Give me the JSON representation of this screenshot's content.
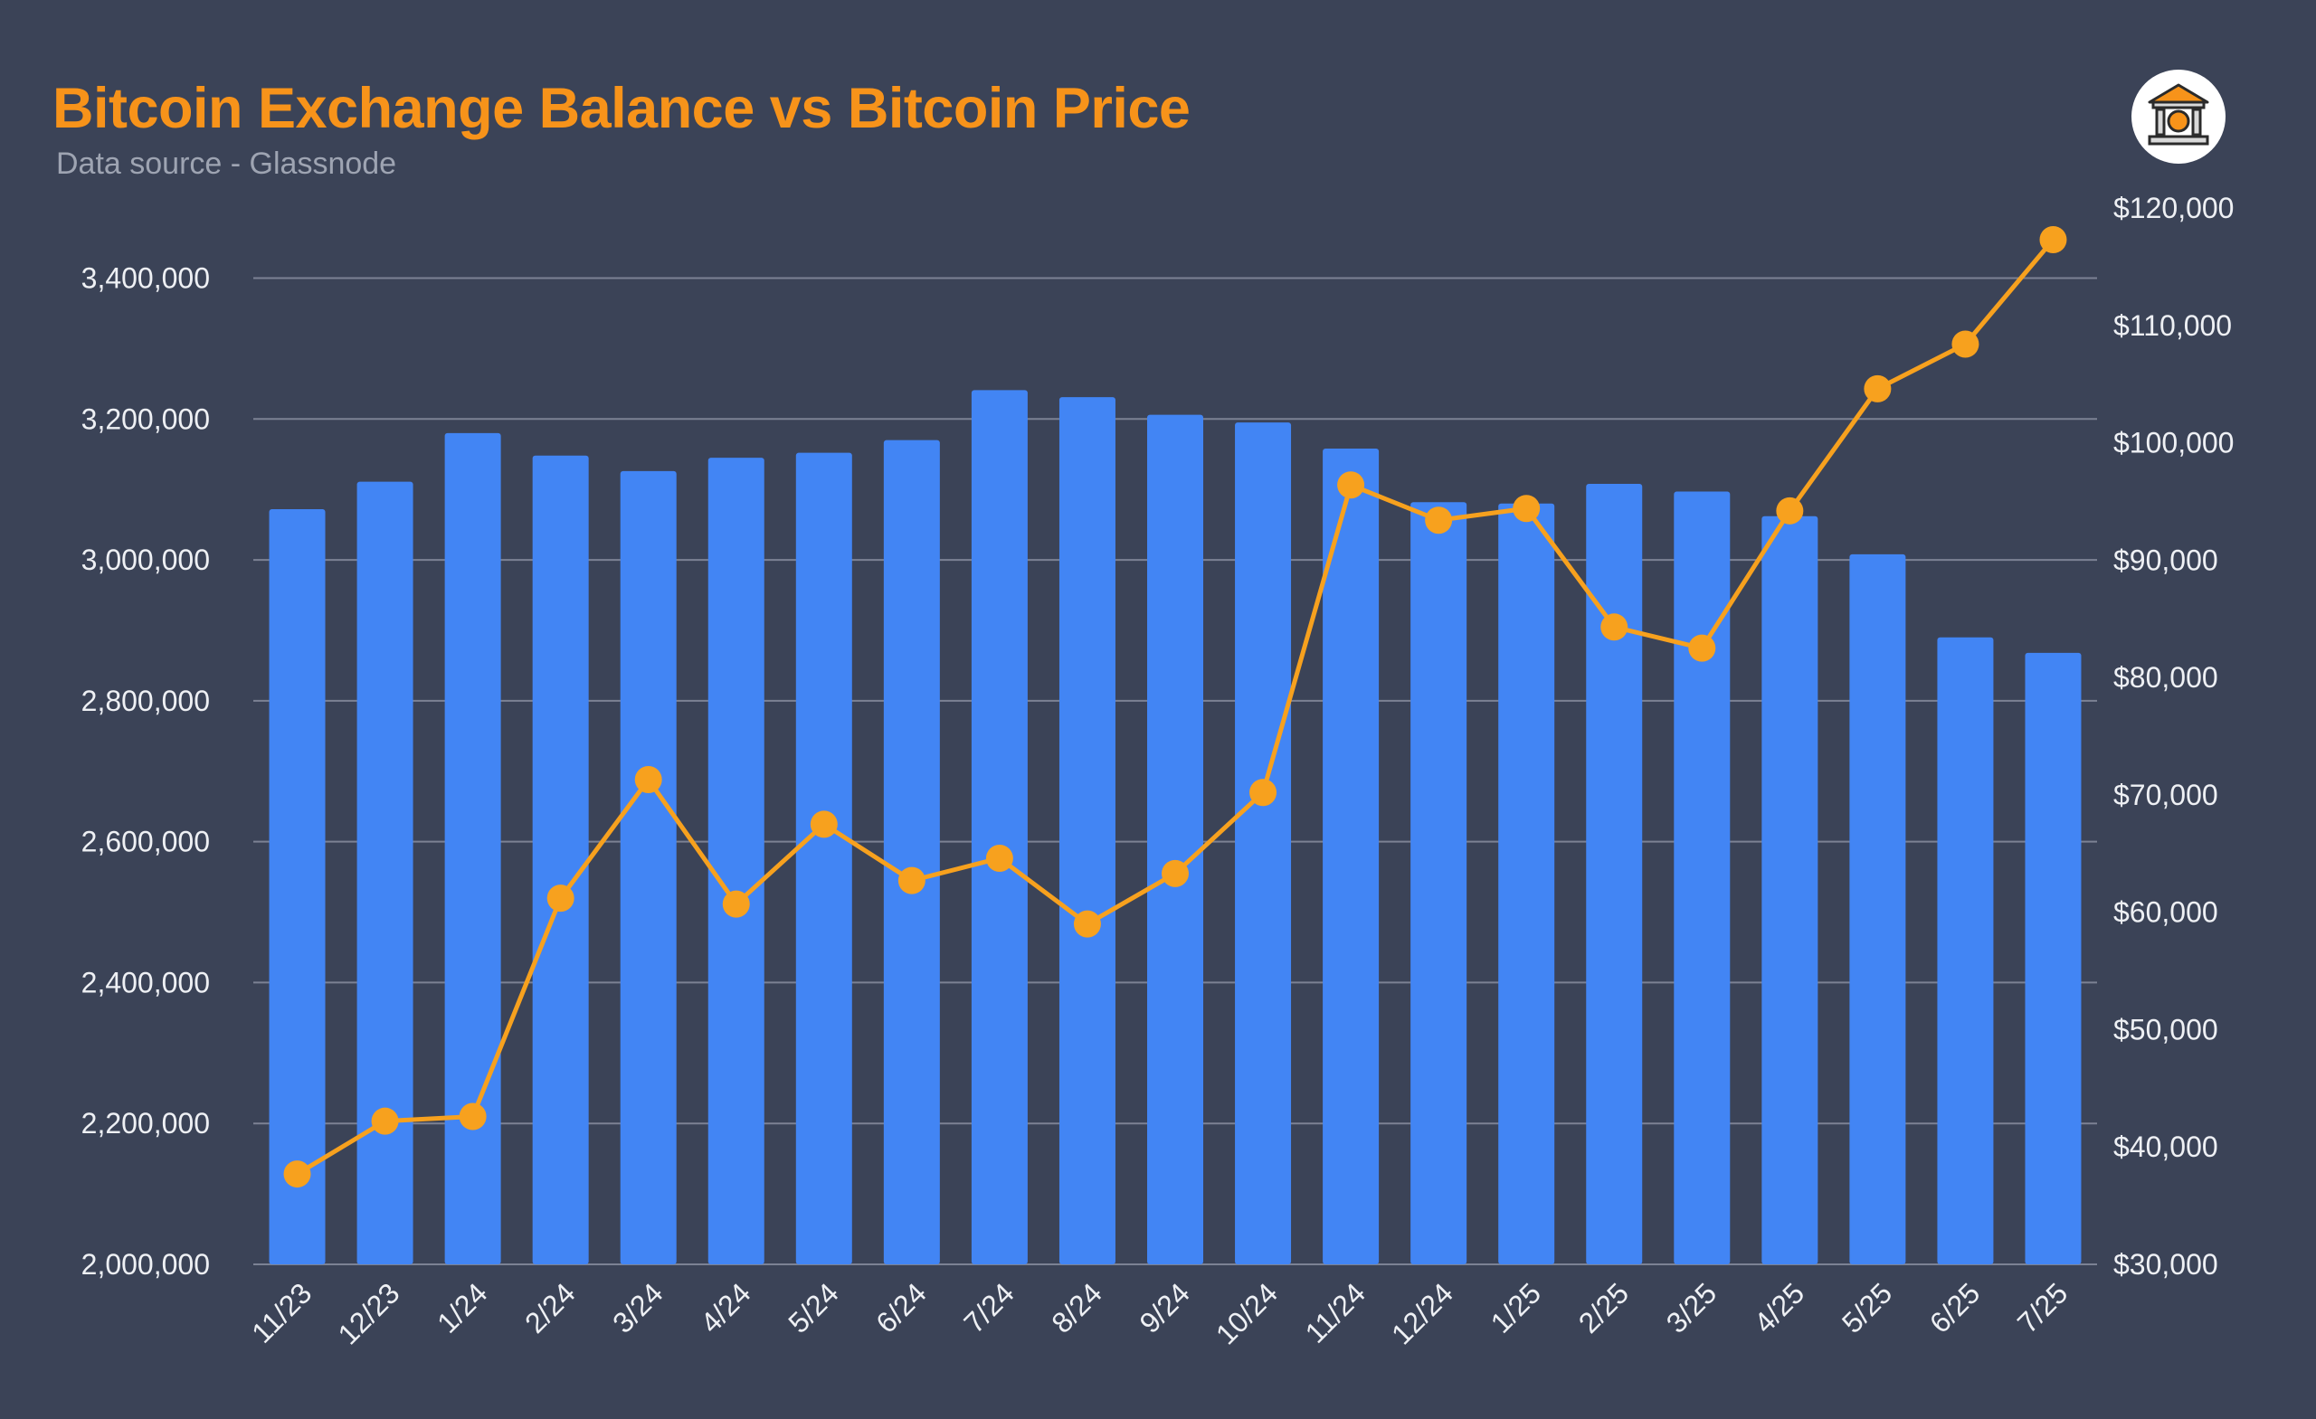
{
  "title": "Bitcoin Exchange Balance vs Bitcoin Price",
  "subtitle": "Data source - Glassnode",
  "logo_icon": "bitcoin-bank-icon",
  "colors": {
    "background": "#3b4357",
    "bars": "#4285f4",
    "line": "#f7a11e",
    "title": "#f7931a",
    "grid": "#7c8294"
  },
  "chart_data": {
    "type": "bar",
    "categories": [
      "11/23",
      "12/23",
      "1/24",
      "2/24",
      "3/24",
      "4/24",
      "5/24",
      "6/24",
      "7/24",
      "8/24",
      "9/24",
      "10/24",
      "11/24",
      "12/24",
      "1/25",
      "2/25",
      "3/25",
      "4/25",
      "5/25",
      "6/25",
      "7/25"
    ],
    "series": [
      {
        "type": "bar",
        "axis": "left",
        "values": [
          3072000,
          3111000,
          3180000,
          3148000,
          3126000,
          3145000,
          3152000,
          3170000,
          3241000,
          3231000,
          3206000,
          3195000,
          3158000,
          3082000,
          3080000,
          3108000,
          3097000,
          3062000,
          3008000,
          2890000,
          2868000
        ]
      },
      {
        "type": "line",
        "axis": "right",
        "values": [
          37700,
          42200,
          42600,
          61200,
          71300,
          60700,
          67500,
          62700,
          64600,
          59000,
          63300,
          70200,
          96400,
          93400,
          94400,
          84300,
          82500,
          94200,
          104600,
          108400,
          117300
        ]
      }
    ],
    "y_left": {
      "lim": [
        2000000,
        3500000
      ],
      "ticks": [
        2000000,
        2200000,
        2400000,
        2600000,
        2800000,
        3000000,
        3200000,
        3400000
      ],
      "tick_labels": [
        "2,000,000",
        "2,200,000",
        "2,400,000",
        "2,600,000",
        "2,800,000",
        "3,000,000",
        "3,200,000",
        "3,400,000"
      ]
    },
    "y_right": {
      "lim": [
        30000,
        122500
      ],
      "ticks": [
        30000,
        40000,
        50000,
        60000,
        70000,
        80000,
        90000,
        100000,
        110000,
        120000
      ],
      "tick_labels": [
        "$30,000",
        "$40,000",
        "$50,000",
        "$60,000",
        "$70,000",
        "$80,000",
        "$90,000",
        "$100,000",
        "$110,000",
        "$120,000"
      ]
    },
    "xlabel": "",
    "ylabel": "",
    "grid": true,
    "legend": "none"
  }
}
